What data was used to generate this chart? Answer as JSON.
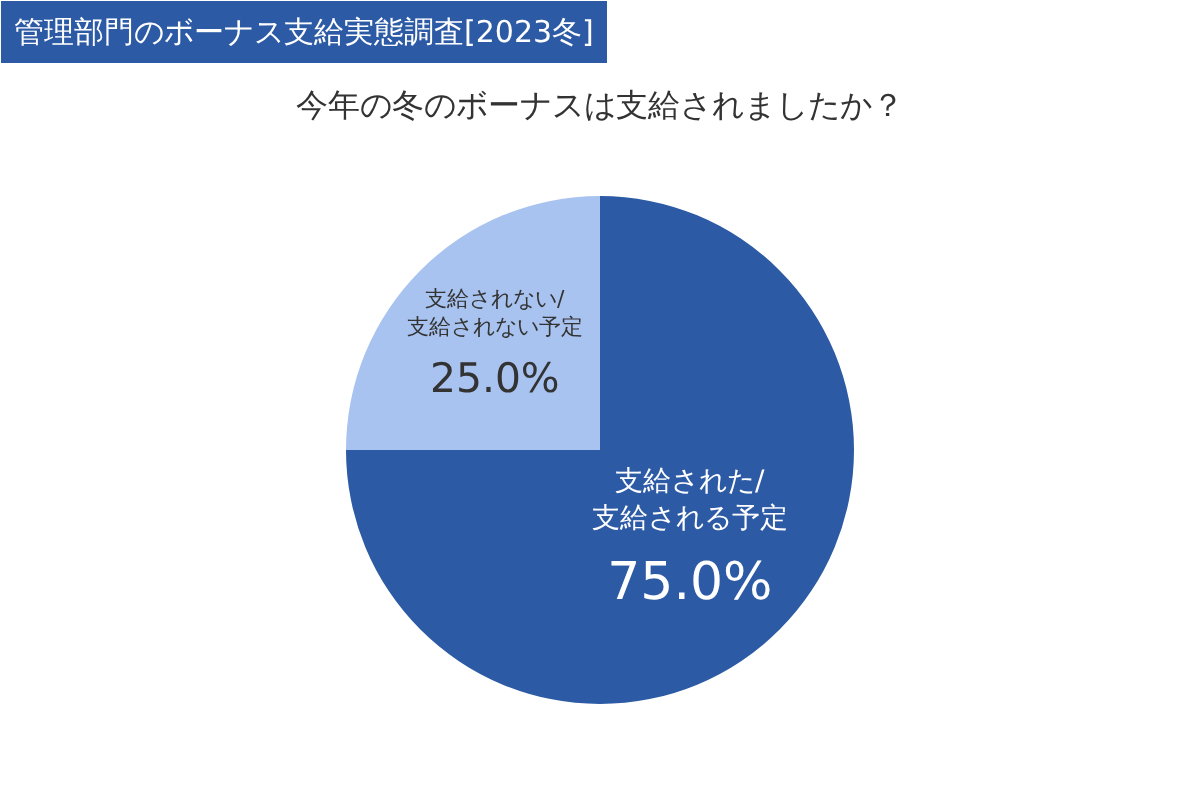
{
  "chart_data": {
    "type": "pie",
    "title": "管理部門のボーナス支給実態調査[2023冬]",
    "subtitle": "今年の冬のボーナスは支給されましたか？",
    "categories": [
      "支給された/支給される予定",
      "支給されない/支給されない予定"
    ],
    "values": [
      75.0,
      25.0
    ],
    "value_labels": [
      "75.0%",
      "25.0%"
    ],
    "colors": [
      "#2c5aa5",
      "#a8c3ef"
    ],
    "legend": false
  }
}
